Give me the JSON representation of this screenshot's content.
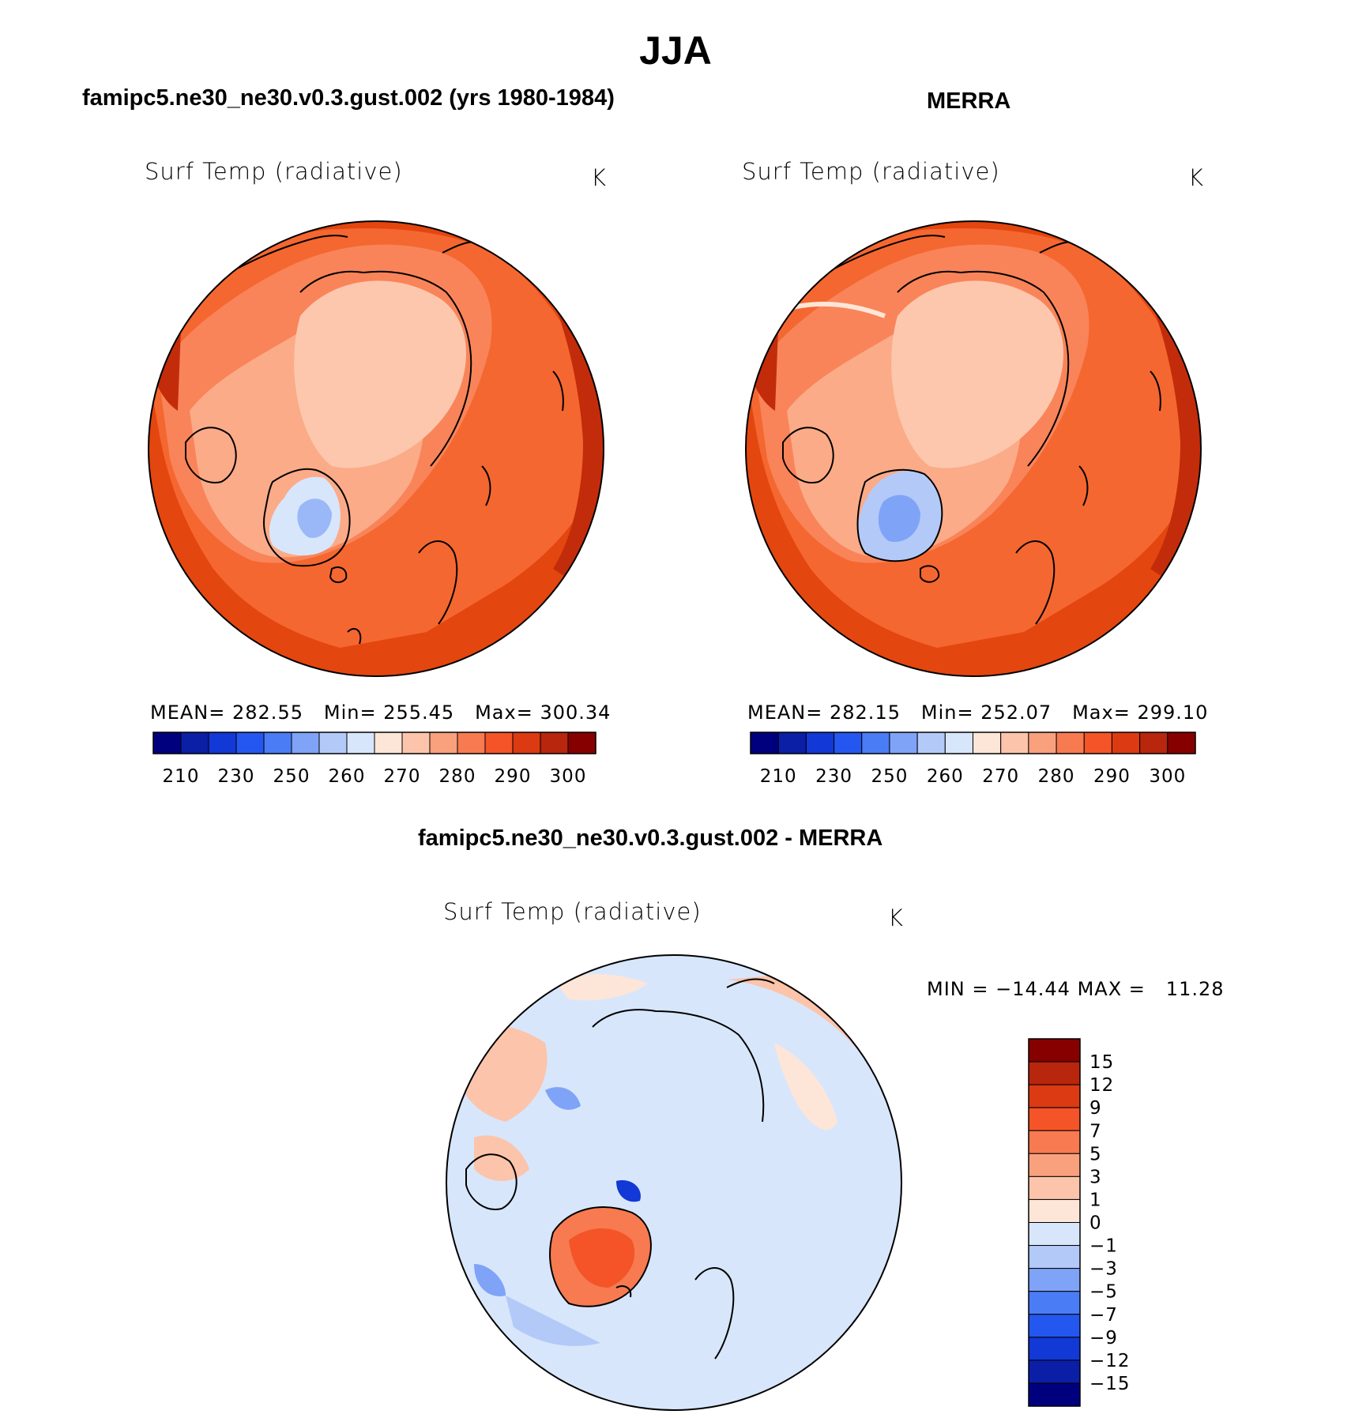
{
  "season": "JJA",
  "panels": [
    {
      "title": "famipc5.ne30_ne30.v0.3.gust.002 (yrs 1980-1984)",
      "variable": "Surf Temp (radiative)",
      "units": "K",
      "stats": {
        "mean_label": "MEAN=",
        "mean": "282.55",
        "min_label": "Min=",
        "min": "255.45",
        "max_label": "Max=",
        "max": "300.34"
      }
    },
    {
      "title": "MERRA",
      "variable": "Surf Temp (radiative)",
      "units": "K",
      "stats": {
        "mean_label": "MEAN=",
        "mean": "282.15",
        "min_label": "Min=",
        "min": "252.07",
        "max_label": "Max=",
        "max": "299.10"
      }
    }
  ],
  "abs_colorbar": {
    "labels": [
      "210",
      "230",
      "250",
      "260",
      "270",
      "280",
      "290",
      "300"
    ],
    "colors": [
      "#00007f",
      "#0a1fa6",
      "#1238d6",
      "#2457f0",
      "#4a7cf5",
      "#7fa3f7",
      "#b3c9f8",
      "#d8e6fb",
      "#fde6d8",
      "#fcc4aa",
      "#f9a07d",
      "#f77a50",
      "#f45428",
      "#dc3a12",
      "#b8260d",
      "#870000"
    ]
  },
  "diff_panel": {
    "title": "famipc5.ne30_ne30.v0.3.gust.002 - MERRA",
    "variable": "Surf Temp (radiative)",
    "units": "K",
    "minmax": {
      "min_label": "MIN =",
      "min": "−14.44",
      "max_label": "MAX =",
      "max": "11.28"
    },
    "colorbar": {
      "labels": [
        "15",
        "12",
        "9",
        "7",
        "5",
        "3",
        "1",
        "0",
        "−1",
        "−3",
        "−5",
        "−7",
        "−9",
        "−12",
        "−15"
      ],
      "colors": [
        "#870000",
        "#b8260d",
        "#dc3a12",
        "#f45428",
        "#f77a50",
        "#f9a07d",
        "#fcc4aa",
        "#fde6d8",
        "#d8e6fb",
        "#b3c9f8",
        "#7fa3f7",
        "#4a7cf5",
        "#2457f0",
        "#1238d6",
        "#0a1fa6",
        "#00007f"
      ]
    }
  }
}
